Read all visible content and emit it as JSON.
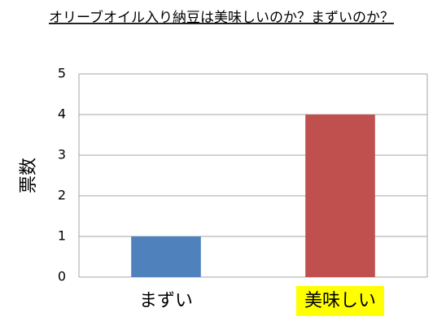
{
  "chart_data": {
    "type": "bar",
    "title": "オリーブオイル入り納豆は美味しいのか？まずいのか？",
    "y_label": "票数",
    "categories": [
      "まずい",
      "美味しい"
    ],
    "values": [
      1,
      4
    ],
    "colors": [
      "#4f81bd",
      "#c0504d"
    ],
    "category_highlights": [
      null,
      "#ffff00"
    ],
    "ylim": [
      0,
      5
    ],
    "yticks": [
      0,
      1,
      2,
      3,
      4,
      5
    ],
    "grid": true
  }
}
